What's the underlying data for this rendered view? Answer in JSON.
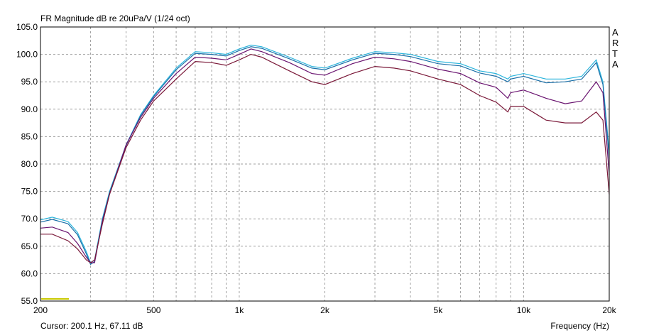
{
  "chart_data": {
    "type": "line",
    "title": "FR Magnitude dB re 20uPa/V (1/24 oct)",
    "brand": "ARTA",
    "cursor": "Cursor: 200.1 Hz, 67.11 dB",
    "x_label": "Frequency (Hz)",
    "log_x": true,
    "grid": true,
    "xlim": [
      200,
      20000
    ],
    "xticks": [
      200,
      500,
      {
        "value": 1000,
        "label": "1k"
      },
      {
        "value": 2000,
        "label": "2k"
      },
      {
        "value": 5000,
        "label": "5k"
      },
      {
        "value": 10000,
        "label": "10k"
      },
      {
        "value": 20000,
        "label": "20k"
      }
    ],
    "xgrid": [
      300,
      400,
      600,
      700,
      800,
      900,
      3000,
      4000,
      6000,
      7000,
      8000,
      9000
    ],
    "ylim": [
      55,
      105
    ],
    "yticks": [
      {
        "value": 55,
        "label": "55.0"
      },
      {
        "value": 60,
        "label": "60.0"
      },
      {
        "value": 65,
        "label": "65.0"
      },
      {
        "value": 70,
        "label": "70.0"
      },
      {
        "value": 75,
        "label": "75.0"
      },
      {
        "value": 80,
        "label": "80.0"
      },
      {
        "value": 85,
        "label": "85.0"
      },
      {
        "value": 90,
        "label": "90.0"
      },
      {
        "value": 95,
        "label": "95.0"
      },
      {
        "value": 100,
        "label": "100.0"
      },
      {
        "value": 105,
        "label": "105.0"
      }
    ],
    "x": [
      200,
      220,
      250,
      270,
      290,
      300,
      310,
      330,
      350,
      400,
      450,
      500,
      600,
      700,
      800,
      900,
      1000,
      1100,
      1200,
      1500,
      1800,
      2000,
      2500,
      3000,
      3500,
      4000,
      5000,
      6000,
      7000,
      8000,
      8800,
      9000,
      10000,
      12000,
      14000,
      16000,
      18000,
      19000,
      20000
    ],
    "series": [
      {
        "color": "#2ab4dc",
        "values": [
          69.8,
          70.3,
          69.5,
          67.5,
          64,
          62,
          62.5,
          70,
          75,
          83.5,
          89,
          92.5,
          97.5,
          100.5,
          100.3,
          100,
          101,
          101.7,
          101.4,
          99.5,
          97.8,
          97.5,
          99.3,
          100.5,
          100.3,
          100,
          98.7,
          98.3,
          97,
          96.5,
          95.5,
          96,
          96.5,
          95.5,
          95.5,
          96,
          99,
          95,
          82
        ]
      },
      {
        "color": "#1a6fa8",
        "values": [
          69.4,
          69.9,
          69.1,
          67.1,
          63.6,
          61.7,
          62.2,
          69.7,
          74.8,
          83.4,
          88.8,
          92.3,
          97.2,
          100.2,
          100,
          99.7,
          100.7,
          101.4,
          101.1,
          99.2,
          97.5,
          97.2,
          99,
          100.2,
          100,
          99.6,
          98.3,
          97.9,
          96.6,
          96,
          95,
          95.5,
          96,
          94.8,
          95,
          95.5,
          98.5,
          94.5,
          81
        ]
      },
      {
        "color": "#6a1470",
        "values": [
          68.3,
          68.5,
          67.5,
          65.5,
          63,
          62,
          62,
          69.5,
          74.5,
          83.5,
          88.5,
          92,
          96.5,
          99.5,
          99.3,
          99,
          100,
          101,
          100.5,
          98.5,
          96.5,
          96.2,
          98.3,
          99.5,
          99.2,
          98.7,
          97.3,
          96.5,
          94.8,
          94,
          92,
          93,
          93.5,
          92,
          91,
          91.5,
          95,
          93,
          78
        ]
      },
      {
        "color": "#7a1838",
        "values": [
          67.2,
          67.2,
          66,
          64.5,
          62.5,
          62,
          62.5,
          69,
          74.5,
          83,
          88,
          91.5,
          95.5,
          98.7,
          98.5,
          98,
          99,
          100,
          99.5,
          97,
          95,
          94.5,
          96.5,
          97.8,
          97.5,
          97,
          95.5,
          94.5,
          92.5,
          91.3,
          89.5,
          90.5,
          90.5,
          88,
          87.5,
          87.5,
          89.5,
          88,
          74.5
        ]
      }
    ]
  }
}
